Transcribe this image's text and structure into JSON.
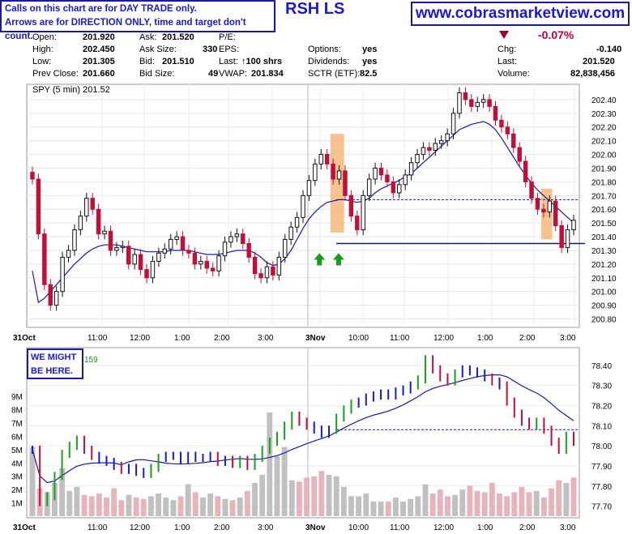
{
  "header": {
    "notice_line1": "Calls on this chart are for DAY TRADE only.",
    "notice_line2": "Arrows are for DIRECTION ONLY, time and target don't count.",
    "symbol": "RSH LS",
    "website": "www.cobrasmarketview.com"
  },
  "quote": {
    "open_label": "Open:",
    "open": "201.920",
    "high_label": "High:",
    "high": "202.450",
    "low_label": "Low:",
    "low": "201.305",
    "prev_close_label": "Prev Close:",
    "prev_close": "201.660",
    "ask_label": "Ask:",
    "ask": "201.520",
    "ask_size_label": "Ask Size:",
    "ask_size": "330",
    "bid_label": "Bid:",
    "bid": "201.510",
    "bid_size_label": "Bid Size:",
    "bid_size": "49",
    "pe_label": "P/E:",
    "eps_label": "EPS:",
    "last_label": "Last:",
    "last_shares": "100 shrs",
    "vwap_label": "VWAP:",
    "vwap": "201.834",
    "options_label": "Options:",
    "options": "yes",
    "dividends_label": "Dividends:",
    "dividends": "yes",
    "sctr_label": "SCTR (ETF):",
    "sctr": "82.5",
    "change_pct": "-0.07%",
    "chg_label": "Chg:",
    "chg": "-0.140",
    "last2_label": "Last:",
    "last2": "201.520",
    "volume_label": "Volume:",
    "volume": "82,838,456"
  },
  "colors": {
    "up": "#111111",
    "down": "#c0103a",
    "ma": "#1a1aa0",
    "accent": "#1a1ad0",
    "highlight": "#f5b87a",
    "arrow": "#1a9a1a"
  },
  "chart_data": [
    {
      "type": "candlestick",
      "title": "SPY (5 min) 201.52",
      "ylim": [
        200.75,
        202.5
      ],
      "yticks": [
        "202.40",
        "202.30",
        "202.20",
        "202.10",
        "202.00",
        "201.90",
        "201.80",
        "201.70",
        "201.60",
        "201.50",
        "201.40",
        "201.30",
        "201.20",
        "201.10",
        "201.00",
        "200.90",
        "200.80"
      ],
      "xticks": [
        "31Oct",
        "11:00",
        "12:00",
        "1:00",
        "2:00",
        "3:00",
        "3Nov",
        "10:00",
        "11:00",
        "12:00",
        "1:00",
        "2:00",
        "3:00"
      ],
      "close": [
        201.82,
        201.42,
        201.05,
        200.9,
        201.0,
        201.25,
        201.3,
        201.45,
        201.55,
        201.68,
        201.6,
        201.42,
        201.44,
        201.3,
        201.32,
        201.33,
        201.2,
        201.27,
        201.16,
        201.1,
        201.22,
        201.28,
        201.31,
        201.38,
        201.4,
        201.3,
        201.28,
        201.2,
        201.22,
        201.17,
        201.15,
        201.26,
        201.36,
        201.4,
        201.42,
        201.35,
        201.25,
        201.13,
        201.1,
        201.18,
        201.12,
        201.25,
        201.38,
        201.47,
        201.54,
        201.7,
        201.81,
        201.93,
        202.0,
        201.93,
        201.82,
        201.88,
        201.7,
        201.55,
        201.45,
        201.7,
        201.82,
        201.9,
        201.85,
        201.8,
        201.72,
        201.78,
        201.85,
        201.94,
        202.0,
        202.05,
        202.03,
        202.08,
        202.1,
        202.15,
        202.3,
        202.45,
        202.4,
        202.35,
        202.38,
        202.4,
        202.35,
        202.25,
        202.2,
        202.15,
        202.05,
        201.95,
        201.8,
        201.68,
        201.6,
        201.58,
        201.66,
        201.48,
        201.32,
        201.45,
        201.52
      ],
      "ma": [
        201.15,
        200.92,
        200.95,
        201.0,
        201.05,
        201.1,
        201.15,
        201.2,
        201.24,
        201.28,
        201.31,
        201.33,
        201.34,
        201.34,
        201.34,
        201.33,
        201.32,
        201.31,
        201.3,
        201.29,
        201.29,
        201.29,
        201.29,
        201.3,
        201.3,
        201.3,
        201.3,
        201.29,
        201.28,
        201.27,
        201.27,
        201.27,
        201.28,
        201.29,
        201.3,
        201.3,
        201.3,
        201.28,
        201.25,
        201.21,
        201.19,
        201.2,
        201.24,
        201.3,
        201.38,
        201.46,
        201.53,
        201.58,
        201.62,
        201.65,
        201.66,
        201.67,
        201.67,
        201.66,
        201.65,
        201.66,
        201.68,
        201.72,
        201.75,
        201.77,
        201.79,
        201.81,
        201.84,
        201.86,
        201.9,
        201.94,
        201.98,
        202.02,
        202.06,
        202.1,
        202.14,
        202.18,
        202.2,
        202.22,
        202.23,
        202.24,
        202.22,
        202.18,
        202.12,
        202.05,
        201.98,
        201.91,
        201.85,
        201.79,
        201.74,
        201.7,
        201.66,
        201.62,
        201.58,
        201.54,
        201.5
      ],
      "resistance": 201.67,
      "support": 201.35,
      "highlights": [
        {
          "x_from": 0.55,
          "x_to": 0.575,
          "top": 202.15,
          "bottom": 201.43
        },
        {
          "x_from": 0.935,
          "x_to": 0.955,
          "top": 201.75,
          "bottom": 201.38
        }
      ],
      "arrows": [
        {
          "x": 0.53,
          "direction": "up"
        },
        {
          "x": 0.565,
          "direction": "up"
        }
      ]
    },
    {
      "type": "bar+line",
      "legend_fragment": "159",
      "ylim": [
        77.65,
        78.48
      ],
      "yticks": [
        "78.40",
        "78.30",
        "78.20",
        "78.10",
        "78.00",
        "77.90",
        "77.80",
        "77.70"
      ],
      "volume_ticks": [
        "9M",
        "8M",
        "7M",
        "6M",
        "5M",
        "4M",
        "3M",
        "2M",
        "1M"
      ],
      "xticks": [
        "31Oct",
        "11:00",
        "12:00",
        "1:00",
        "2:00",
        "3:00",
        "3Nov",
        "10:00",
        "11:00",
        "12:00",
        "1:00",
        "2:00",
        "3:00"
      ],
      "close": [
        77.98,
        77.72,
        77.75,
        77.85,
        77.96,
        78.0,
        78.03,
        77.98,
        77.95,
        77.93,
        77.92,
        77.9,
        77.88,
        77.89,
        77.87,
        77.86,
        77.89,
        77.94,
        77.95,
        77.95,
        77.93,
        77.95,
        77.94,
        77.94,
        77.95,
        77.92,
        77.93,
        77.91,
        77.93,
        77.9,
        77.94,
        77.98,
        78.02,
        78.05,
        78.1,
        78.15,
        78.12,
        78.1,
        78.08,
        78.06,
        78.08,
        78.14,
        78.18,
        78.21,
        78.22,
        78.24,
        78.25,
        78.26,
        78.25,
        78.27,
        78.28,
        78.3,
        78.33,
        78.43,
        78.38,
        78.34,
        78.32,
        78.36,
        78.38,
        78.37,
        78.36,
        78.34,
        78.32,
        78.3,
        78.22,
        78.16,
        78.12,
        78.1,
        78.12,
        78.08,
        78.02,
        77.98,
        78.05,
        78.02
      ],
      "volume": [
        5.2,
        2.1,
        1.8,
        2.5,
        3.6,
        1.9,
        2.2,
        1.6,
        1.5,
        1.7,
        1.4,
        2.1,
        1.2,
        1.6,
        1.4,
        1.3,
        1.5,
        1.7,
        1.4,
        1.2,
        1.5,
        2.4,
        1.8,
        1.4,
        1.7,
        1.5,
        1.3,
        1.2,
        1.4,
        1.9,
        2.5,
        3.1,
        7.8,
        4.5,
        5.2,
        2.7,
        2.6,
        2.9,
        3.0,
        3.4,
        3.1,
        3.0,
        2.2,
        1.5,
        1.5,
        1.7,
        1.1,
        1.1,
        1.1,
        1.4,
        1.1,
        1.3,
        1.5,
        2.4,
        1.7,
        2.0,
        1.5,
        1.6,
        2.0,
        2.3,
        1.9,
        1.8,
        2.5,
        1.7,
        1.5,
        1.8,
        2.2,
        1.8,
        1.9,
        1.4,
        2.1,
        2.7,
        2.5,
        2.9
      ],
      "resistance": 78.08
    }
  ]
}
